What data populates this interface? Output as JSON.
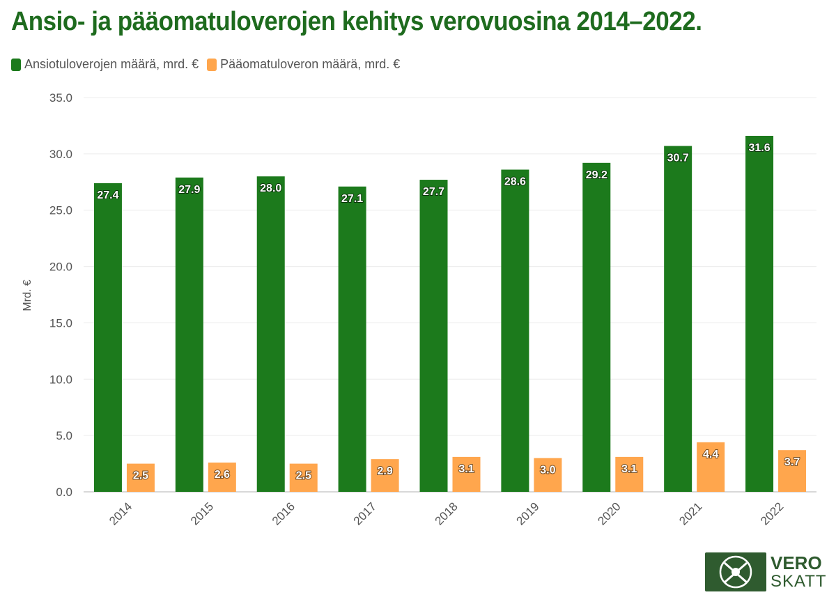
{
  "title": "Ansio- ja pääomatuloverojen kehitys verovuosina 2014–2022.",
  "legend": {
    "series1": "Ansiotuloverojen määrä, mrd. €",
    "series2": "Pääomatuloveron määrä, mrd. €"
  },
  "colors": {
    "series1": "#1c7a1c",
    "series2": "#ffa64d",
    "title": "#1e6b1e",
    "grid": "#ececec"
  },
  "logo": {
    "vero": "VERO",
    "skatt": "SKATT"
  },
  "chart_data": {
    "type": "bar",
    "title": "Ansio- ja pääomatuloverojen kehitys verovuosina 2014–2022.",
    "xlabel": "",
    "ylabel": "Mrd. €",
    "ylim": [
      0,
      35
    ],
    "yticks": [
      "0.0",
      "5.0",
      "10.0",
      "15.0",
      "20.0",
      "25.0",
      "30.0",
      "35.0"
    ],
    "grid": true,
    "legend_position": "top-left",
    "categories": [
      "2014",
      "2015",
      "2016",
      "2017",
      "2018",
      "2019",
      "2020",
      "2021",
      "2022"
    ],
    "series": [
      {
        "name": "Ansiotuloverojen määrä, mrd. €",
        "values": [
          27.4,
          27.9,
          28.0,
          27.1,
          27.7,
          28.6,
          29.2,
          30.7,
          31.6
        ]
      },
      {
        "name": "Pääomatuloveron määrä, mrd. €",
        "values": [
          2.5,
          2.6,
          2.5,
          2.9,
          3.1,
          3.0,
          3.1,
          4.4,
          3.7
        ]
      }
    ]
  }
}
